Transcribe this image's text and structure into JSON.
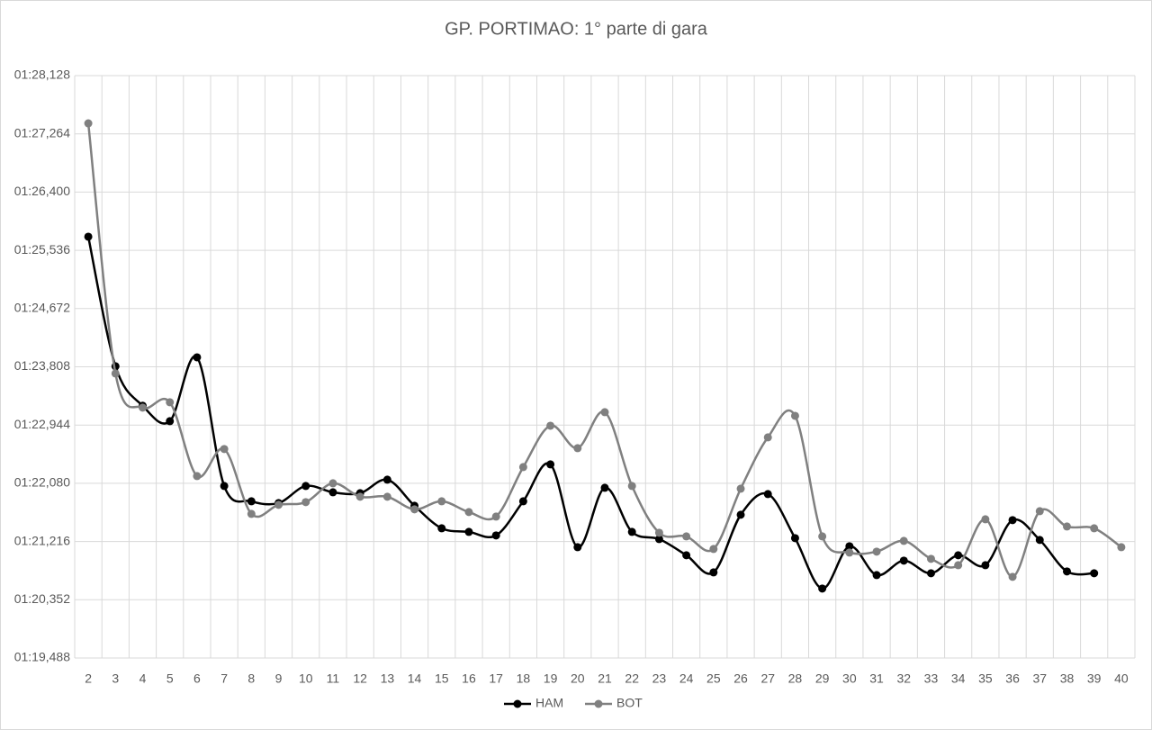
{
  "chart_data": {
    "type": "line",
    "title": "GP. PORTIMAO: 1° parte di gara",
    "categories": [
      2,
      3,
      4,
      5,
      6,
      7,
      8,
      9,
      10,
      11,
      12,
      13,
      14,
      15,
      16,
      17,
      18,
      19,
      20,
      21,
      22,
      23,
      24,
      25,
      26,
      27,
      28,
      29,
      30,
      31,
      32,
      33,
      34,
      35,
      36,
      37,
      38,
      39,
      40
    ],
    "series": [
      {
        "name": "HAM",
        "color": "#000000",
        "values": [
          85.738,
          83.816,
          83.23,
          83.001,
          83.949,
          82.04,
          81.813,
          81.786,
          82.04,
          81.946,
          81.933,
          82.133,
          81.746,
          81.412,
          81.359,
          81.306,
          81.813,
          82.36,
          81.132,
          82.013,
          81.359,
          81.252,
          81.012,
          80.758,
          81.613,
          81.92,
          81.266,
          80.518,
          81.146,
          80.718,
          80.932,
          80.745,
          81.012,
          80.865,
          81.533,
          81.239,
          80.772,
          80.745,
          null
        ]
      },
      {
        "name": "BOT",
        "color": "#808080",
        "values": [
          87.42,
          83.709,
          83.202,
          83.282,
          82.187,
          82.588,
          81.626,
          81.76,
          81.8,
          82.08,
          81.88,
          81.88,
          81.693,
          81.813,
          81.653,
          81.586,
          82.32,
          82.934,
          82.601,
          83.135,
          82.04,
          81.346,
          81.292,
          81.105,
          82.0,
          82.761,
          83.081,
          81.292,
          81.052,
          81.066,
          81.225,
          80.959,
          80.865,
          81.546,
          80.692,
          81.666,
          81.439,
          81.412,
          81.132
        ]
      }
    ],
    "ylim": [
      79.488,
      88.128
    ],
    "yticks": [
      {
        "value": 79.488,
        "label": "01:19,488"
      },
      {
        "value": 80.352,
        "label": "01:20,352"
      },
      {
        "value": 81.216,
        "label": "01:21,216"
      },
      {
        "value": 82.08,
        "label": "01:22,080"
      },
      {
        "value": 82.944,
        "label": "01:22,944"
      },
      {
        "value": 83.808,
        "label": "01:23,808"
      },
      {
        "value": 84.672,
        "label": "01:24,672"
      },
      {
        "value": 85.536,
        "label": "01:25,536"
      },
      {
        "value": 86.4,
        "label": "01:26,400"
      },
      {
        "value": 87.264,
        "label": "01:27,264"
      },
      {
        "value": 88.128,
        "label": "01:28,128"
      }
    ],
    "grid": true,
    "smooth": true,
    "legend": "bottom"
  }
}
